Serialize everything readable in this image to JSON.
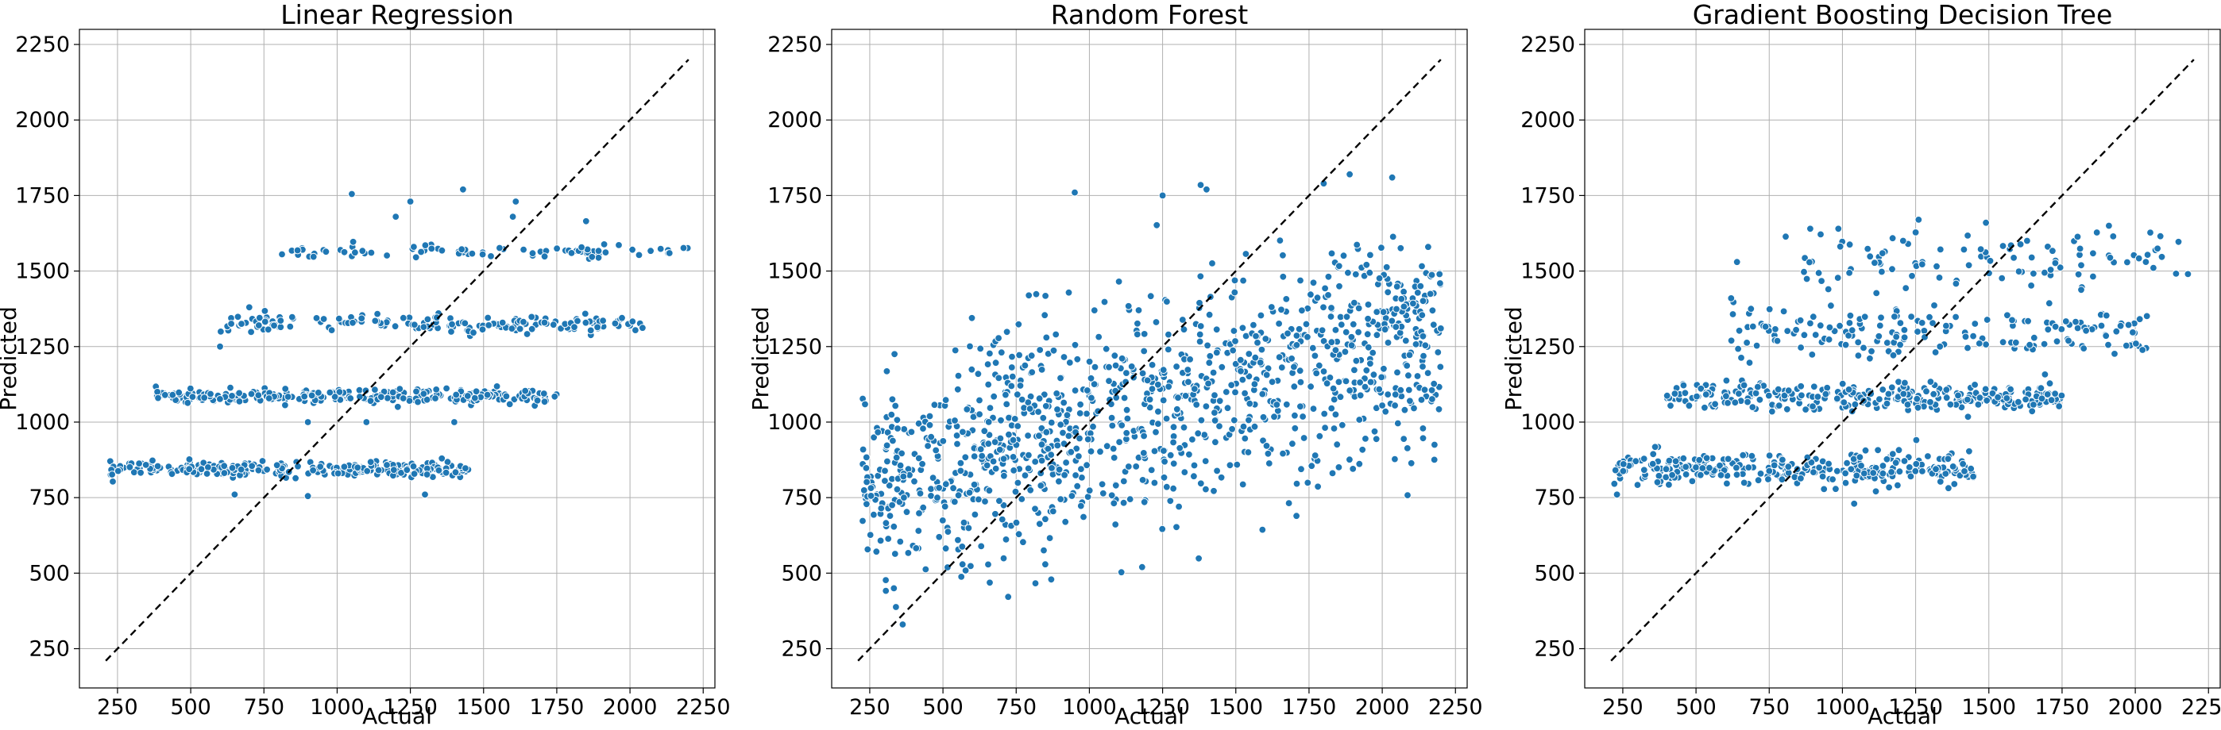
{
  "chart_data": [
    {
      "type": "scatter",
      "title": "Linear Regression",
      "xlabel": "Actual",
      "ylabel": "Predicted",
      "xlim": [
        120,
        2290
      ],
      "ylim": [
        120,
        2300
      ],
      "xticks": [
        250,
        500,
        750,
        1000,
        1250,
        1500,
        1750,
        2000,
        2250
      ],
      "yticks": [
        250,
        500,
        750,
        1000,
        1250,
        1500,
        1750,
        2000,
        2250
      ],
      "grid": true,
      "reference_line": {
        "x": [
          210,
          2200
        ],
        "y": [
          210,
          2200
        ]
      },
      "color": "#1f77b4",
      "clusters": [
        {
          "x": [
            220,
            1450
          ],
          "y": 845,
          "spread": 12,
          "n": 260
        },
        {
          "x": [
            380,
            1750
          ],
          "y": 1085,
          "spread": 12,
          "n": 260
        },
        {
          "x": [
            600,
            2050
          ],
          "y": 1325,
          "spread": 14,
          "n": 170
        },
        {
          "x": [
            800,
            2200
          ],
          "y": 1565,
          "spread": 10,
          "n": 80
        }
      ],
      "scatter_points": [
        {
          "x": 650,
          "y": 760
        },
        {
          "x": 900,
          "y": 755
        },
        {
          "x": 1300,
          "y": 760
        },
        {
          "x": 1100,
          "y": 1000
        },
        {
          "x": 900,
          "y": 1000
        },
        {
          "x": 1400,
          "y": 1000
        },
        {
          "x": 1050,
          "y": 1755
        },
        {
          "x": 1430,
          "y": 1770
        },
        {
          "x": 1610,
          "y": 1730
        },
        {
          "x": 1850,
          "y": 1665
        },
        {
          "x": 1250,
          "y": 1730
        },
        {
          "x": 1200,
          "y": 1680
        },
        {
          "x": 1600,
          "y": 1680
        },
        {
          "x": 700,
          "y": 1380
        },
        {
          "x": 600,
          "y": 1250
        }
      ]
    },
    {
      "type": "scatter",
      "title": "Random Forest",
      "xlabel": "Actual",
      "ylabel": "Predicted",
      "xlim": [
        120,
        2290
      ],
      "ylim": [
        120,
        2300
      ],
      "xticks": [
        250,
        500,
        750,
        1000,
        1250,
        1500,
        1750,
        2000,
        2250
      ],
      "yticks": [
        250,
        500,
        750,
        1000,
        1250,
        1500,
        1750,
        2000,
        2250
      ],
      "grid": true,
      "reference_line": {
        "x": [
          210,
          2200
        ],
        "y": [
          210,
          2200
        ]
      },
      "color": "#1f77b4",
      "clusters": [
        {
          "x": [
            220,
            2200
          ],
          "y": 1000,
          "spread": 180,
          "n": 1150,
          "trend": 0.28,
          "x_center": 1050
        }
      ],
      "scatter_points": [
        {
          "x": 1380,
          "y": 1785
        },
        {
          "x": 1400,
          "y": 1770
        },
        {
          "x": 1800,
          "y": 1790
        },
        {
          "x": 1180,
          "y": 520
        },
        {
          "x": 2000,
          "y": 1055
        },
        {
          "x": 2200,
          "y": 1310
        },
        {
          "x": 950,
          "y": 1760
        },
        {
          "x": 1250,
          "y": 1750
        }
      ]
    },
    {
      "type": "scatter",
      "title": "Gradient Boosting Decision Tree",
      "xlabel": "Actual",
      "ylabel": "Predicted",
      "xlim": [
        120,
        2290
      ],
      "ylim": [
        120,
        2300
      ],
      "xticks": [
        250,
        500,
        750,
        1000,
        1250,
        1500,
        1750,
        2000,
        2250
      ],
      "yticks": [
        250,
        500,
        750,
        1000,
        1250,
        1500,
        1750,
        2000,
        2250
      ],
      "grid": true,
      "reference_line": {
        "x": [
          210,
          2200
        ],
        "y": [
          210,
          2200
        ]
      },
      "color": "#1f77b4",
      "clusters": [
        {
          "x": [
            220,
            1450
          ],
          "y": 845,
          "spread": 25,
          "n": 300
        },
        {
          "x": [
            400,
            1750
          ],
          "y": 1085,
          "spread": 22,
          "n": 300
        },
        {
          "x": [
            620,
            2050
          ],
          "y": 1300,
          "spread": 40,
          "n": 170
        },
        {
          "x": [
            800,
            2150
          ],
          "y": 1540,
          "spread": 50,
          "n": 100
        }
      ],
      "scatter_points": [
        {
          "x": 1260,
          "y": 1670
        },
        {
          "x": 1490,
          "y": 1660
        },
        {
          "x": 1910,
          "y": 1650
        },
        {
          "x": 890,
          "y": 1640
        },
        {
          "x": 640,
          "y": 1530
        },
        {
          "x": 620,
          "y": 1410
        },
        {
          "x": 230,
          "y": 760
        },
        {
          "x": 1040,
          "y": 730
        },
        {
          "x": 2180,
          "y": 1490
        }
      ]
    }
  ]
}
